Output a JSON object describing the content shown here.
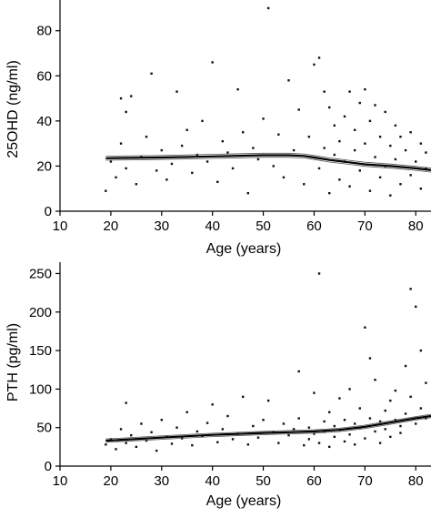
{
  "chart_data": [
    {
      "type": "scatter",
      "title": "",
      "xlabel": "Age (years)",
      "ylabel": "25OHD (ng/ml)",
      "xlim": [
        10,
        83
      ],
      "ylim": [
        0,
        92
      ],
      "xticks": [
        10,
        20,
        30,
        40,
        50,
        60,
        70,
        80
      ],
      "yticks": [
        0,
        20,
        40,
        60,
        80
      ],
      "grid": false,
      "series": [
        {
          "points": [
            [
              19,
              9
            ],
            [
              20,
              22
            ],
            [
              21,
              15
            ],
            [
              22,
              30
            ],
            [
              22,
              50
            ],
            [
              23,
              44
            ],
            [
              23,
              19
            ],
            [
              24,
              51
            ],
            [
              25,
              12
            ],
            [
              26,
              24
            ],
            [
              27,
              33
            ],
            [
              28,
              61
            ],
            [
              29,
              18
            ],
            [
              30,
              27
            ],
            [
              31,
              14
            ],
            [
              32,
              21
            ],
            [
              33,
              53
            ],
            [
              34,
              29
            ],
            [
              35,
              36
            ],
            [
              36,
              17
            ],
            [
              37,
              25
            ],
            [
              38,
              40
            ],
            [
              39,
              22
            ],
            [
              40,
              66
            ],
            [
              41,
              13
            ],
            [
              42,
              31
            ],
            [
              43,
              26
            ],
            [
              44,
              19
            ],
            [
              45,
              54
            ],
            [
              46,
              35
            ],
            [
              47,
              8
            ],
            [
              48,
              28
            ],
            [
              49,
              23
            ],
            [
              50,
              41
            ],
            [
              51,
              90
            ],
            [
              52,
              20
            ],
            [
              53,
              34
            ],
            [
              54,
              15
            ],
            [
              55,
              58
            ],
            [
              56,
              27
            ],
            [
              57,
              45
            ],
            [
              58,
              12
            ],
            [
              59,
              33
            ],
            [
              60,
              65
            ],
            [
              61,
              68
            ],
            [
              61,
              19
            ],
            [
              62,
              53
            ],
            [
              62,
              28
            ],
            [
              63,
              46
            ],
            [
              63,
              8
            ],
            [
              64,
              38
            ],
            [
              64,
              25
            ],
            [
              65,
              31
            ],
            [
              65,
              14
            ],
            [
              66,
              42
            ],
            [
              66,
              22
            ],
            [
              67,
              53
            ],
            [
              67,
              11
            ],
            [
              68,
              36
            ],
            [
              68,
              27
            ],
            [
              69,
              48
            ],
            [
              69,
              18
            ],
            [
              70,
              54
            ],
            [
              70,
              30
            ],
            [
              71,
              9
            ],
            [
              71,
              40
            ],
            [
              72,
              24
            ],
            [
              72,
              47
            ],
            [
              73,
              15
            ],
            [
              73,
              33
            ],
            [
              74,
              44
            ],
            [
              74,
              20
            ],
            [
              75,
              29
            ],
            [
              75,
              7
            ],
            [
              76,
              38
            ],
            [
              76,
              23
            ],
            [
              77,
              12
            ],
            [
              77,
              33
            ],
            [
              78,
              27
            ],
            [
              79,
              16
            ],
            [
              79,
              35
            ],
            [
              80,
              22
            ],
            [
              81,
              10
            ],
            [
              81,
              30
            ],
            [
              82,
              19
            ],
            [
              82,
              26
            ]
          ]
        }
      ],
      "trend": [
        [
          19,
          23.5
        ],
        [
          30,
          23.8
        ],
        [
          40,
          24.3
        ],
        [
          50,
          24.8
        ],
        [
          55,
          24.8
        ],
        [
          58,
          24.5
        ],
        [
          60,
          23.8
        ],
        [
          63,
          22.7
        ],
        [
          65,
          22.2
        ],
        [
          70,
          20.8
        ],
        [
          75,
          20.0
        ],
        [
          80,
          19.0
        ],
        [
          83,
          18.2
        ]
      ]
    },
    {
      "type": "scatter",
      "title": "",
      "xlabel": "Age (years)",
      "ylabel": "PTH (pg/ml)",
      "xlim": [
        10,
        83
      ],
      "ylim": [
        0,
        260
      ],
      "xticks": [
        10,
        20,
        30,
        40,
        50,
        60,
        70,
        80
      ],
      "yticks": [
        0,
        50,
        100,
        150,
        200,
        250
      ],
      "grid": false,
      "series": [
        {
          "points": [
            [
              19,
              28
            ],
            [
              20,
              35
            ],
            [
              21,
              22
            ],
            [
              22,
              48
            ],
            [
              23,
              82
            ],
            [
              23,
              30
            ],
            [
              24,
              40
            ],
            [
              25,
              25
            ],
            [
              26,
              55
            ],
            [
              27,
              33
            ],
            [
              28,
              44
            ],
            [
              29,
              20
            ],
            [
              30,
              60
            ],
            [
              31,
              38
            ],
            [
              32,
              29
            ],
            [
              33,
              50
            ],
            [
              34,
              36
            ],
            [
              35,
              70
            ],
            [
              36,
              27
            ],
            [
              37,
              45
            ],
            [
              38,
              39
            ],
            [
              39,
              56
            ],
            [
              40,
              80
            ],
            [
              41,
              31
            ],
            [
              42,
              48
            ],
            [
              43,
              65
            ],
            [
              44,
              35
            ],
            [
              45,
              42
            ],
            [
              46,
              90
            ],
            [
              47,
              28
            ],
            [
              48,
              52
            ],
            [
              49,
              37
            ],
            [
              50,
              60
            ],
            [
              51,
              85
            ],
            [
              52,
              44
            ],
            [
              53,
              30
            ],
            [
              54,
              55
            ],
            [
              55,
              40
            ],
            [
              56,
              48
            ],
            [
              57,
              123
            ],
            [
              57,
              62
            ],
            [
              58,
              27
            ],
            [
              59,
              50
            ],
            [
              59,
              35
            ],
            [
              60,
              95
            ],
            [
              60,
              42
            ],
            [
              61,
              250
            ],
            [
              61,
              30
            ],
            [
              62,
              58
            ],
            [
              62,
              45
            ],
            [
              63,
              70
            ],
            [
              63,
              25
            ],
            [
              64,
              52
            ],
            [
              64,
              38
            ],
            [
              65,
              88
            ],
            [
              65,
              47
            ],
            [
              66,
              32
            ],
            [
              66,
              60
            ],
            [
              67,
              100
            ],
            [
              67,
              41
            ],
            [
              68,
              55
            ],
            [
              68,
              28
            ],
            [
              69,
              75
            ],
            [
              69,
              50
            ],
            [
              70,
              180
            ],
            [
              70,
              36
            ],
            [
              71,
              140
            ],
            [
              71,
              62
            ],
            [
              72,
              45
            ],
            [
              72,
              112
            ],
            [
              73,
              58
            ],
            [
              73,
              30
            ],
            [
              74,
              72
            ],
            [
              74,
              48
            ],
            [
              75,
              85
            ],
            [
              75,
              38
            ],
            [
              76,
              98
            ],
            [
              76,
              60
            ],
            [
              77,
              52
            ],
            [
              77,
              43
            ],
            [
              78,
              130
            ],
            [
              78,
              68
            ],
            [
              79,
              230
            ],
            [
              79,
              90
            ],
            [
              80,
              207
            ],
            [
              80,
              55
            ],
            [
              81,
              150
            ],
            [
              81,
              75
            ],
            [
              82,
              108
            ],
            [
              82,
              62
            ]
          ]
        }
      ],
      "trend": [
        [
          19,
          33
        ],
        [
          30,
          37
        ],
        [
          40,
          40.5
        ],
        [
          50,
          43
        ],
        [
          55,
          44
        ],
        [
          60,
          45
        ],
        [
          65,
          47
        ],
        [
          70,
          51
        ],
        [
          75,
          56.5
        ],
        [
          80,
          62
        ],
        [
          83,
          65
        ]
      ]
    }
  ]
}
